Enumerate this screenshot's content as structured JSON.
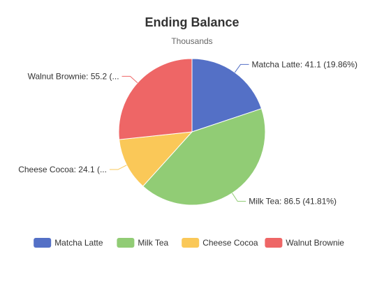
{
  "chart_data": {
    "type": "pie",
    "title": "Ending Balance",
    "subtitle": "Thousands",
    "slices": [
      {
        "name": "Matcha Latte",
        "value": 41.1,
        "percent": "19.86%",
        "label": "Matcha Latte: 41.1 (19.86%)",
        "color": "#5470c6"
      },
      {
        "name": "Milk Tea",
        "value": 86.5,
        "percent": "41.81%",
        "label": "Milk Tea: 86.5 (41.81%)",
        "color": "#91cc75"
      },
      {
        "name": "Cheese Cocoa",
        "value": 24.1,
        "percent": "11.65%",
        "label": "Cheese Cocoa: 24.1 (...",
        "color": "#fac858"
      },
      {
        "name": "Walnut Brownie",
        "value": 55.2,
        "percent": "26.68%",
        "label": "Walnut Brownie: 55.2 (...",
        "color": "#ee6666"
      }
    ],
    "legend": {
      "position": "bottom",
      "items": [
        "Matcha Latte",
        "Milk Tea",
        "Cheese Cocoa",
        "Walnut Brownie"
      ]
    }
  }
}
